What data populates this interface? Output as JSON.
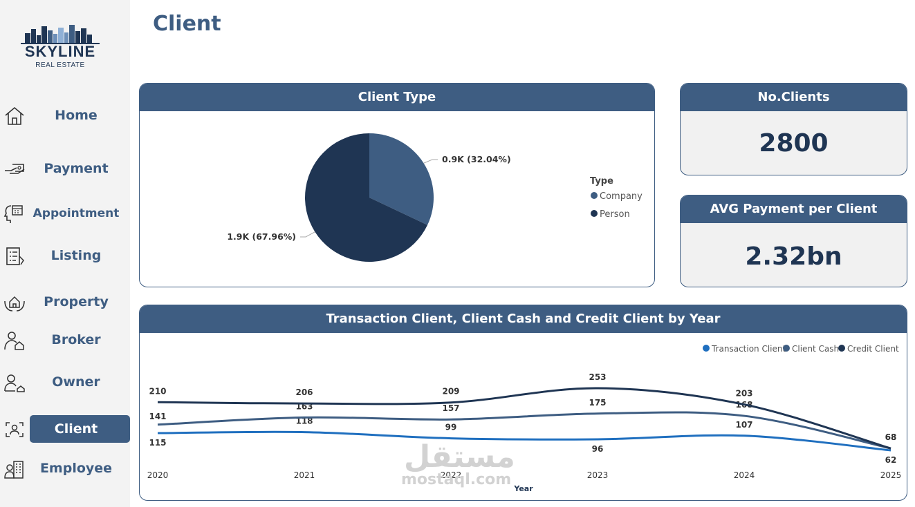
{
  "brand": {
    "name": "SKYLINE",
    "subtitle": "REAL ESTATE"
  },
  "page_title": "Client",
  "nav": [
    {
      "label": "Home",
      "icon": "home-icon",
      "active": false
    },
    {
      "label": "Payment",
      "icon": "payment-hand-icon",
      "active": false
    },
    {
      "label": "Appointment",
      "icon": "calendar-head-icon",
      "active": false
    },
    {
      "label": "Listing",
      "icon": "listing-document-icon",
      "active": false
    },
    {
      "label": "Property",
      "icon": "property-hands-icon",
      "active": false
    },
    {
      "label": "Broker",
      "icon": "broker-person-icon",
      "active": false
    },
    {
      "label": "Owner",
      "icon": "owner-person-icon",
      "active": false
    },
    {
      "label": "Client",
      "icon": "client-scan-icon",
      "active": true
    },
    {
      "label": "Employee",
      "icon": "employee-building-icon",
      "active": false
    }
  ],
  "client_type": {
    "title": "Client Type",
    "legend_title": "Type",
    "chart_data": {
      "type": "pie",
      "slices": [
        {
          "label": "Company",
          "value": 0.9,
          "percent": 32.04,
          "data_label": "0.9K (32.04%)",
          "color": "#3e5d82"
        },
        {
          "label": "Person",
          "value": 1.9,
          "percent": 67.96,
          "data_label": "1.9K (67.96%)",
          "color": "#1f3553"
        }
      ]
    }
  },
  "kpis": {
    "clients": {
      "title": "No.Clients",
      "value": "2800"
    },
    "avg_payment": {
      "title": "AVG Payment per Client",
      "value": "2.32bn"
    }
  },
  "trend": {
    "title": "Transaction Client, Client Cash and Credit Client by Year",
    "chart_data": {
      "type": "line",
      "x": [
        "2020",
        "2021",
        "2022",
        "2023",
        "2024",
        "2025"
      ],
      "xlabel": "Year",
      "legend_position": "top-right",
      "series": [
        {
          "name": "Transaction Client",
          "color": "#1f6fbf",
          "values": [
            115,
            118,
            99,
            96,
            107,
            62
          ]
        },
        {
          "name": "Client Cash",
          "color": "#3e5d82",
          "values": [
            141,
            163,
            157,
            175,
            168,
            68
          ]
        },
        {
          "name": "Credit Client",
          "color": "#1f3553",
          "values": [
            210,
            206,
            209,
            253,
            203,
            68
          ]
        }
      ]
    }
  },
  "watermark": {
    "arabic": "مستقل",
    "latin": "mostaql.com"
  }
}
